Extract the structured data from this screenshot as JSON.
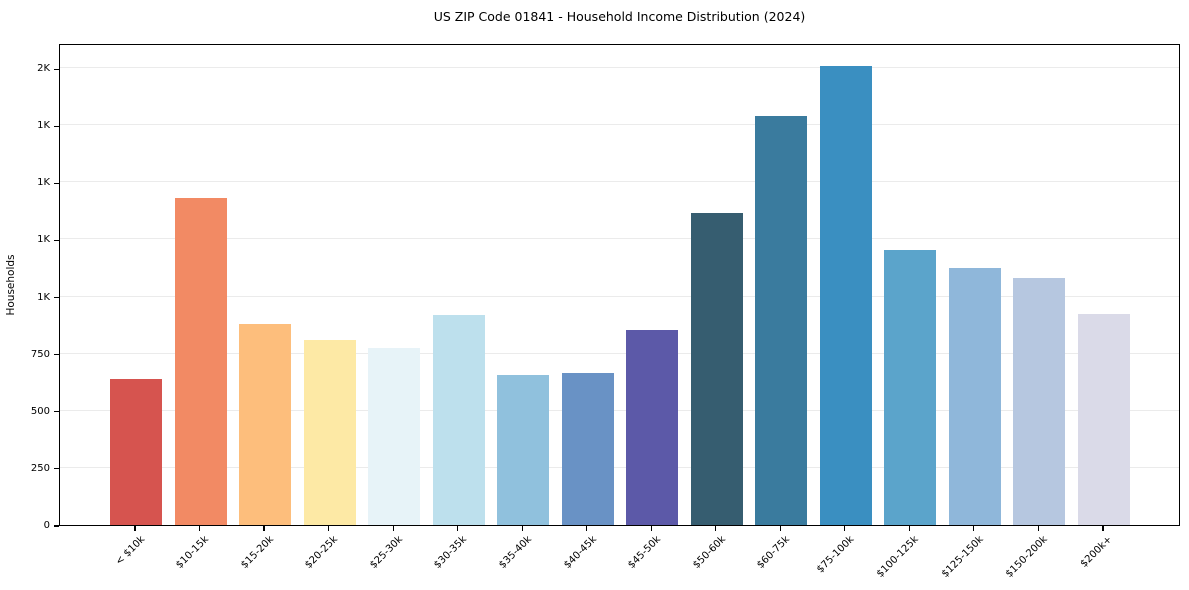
{
  "window": {
    "background": "#ffffff"
  },
  "chart_data": {
    "type": "bar",
    "title": "US ZIP Code 01841 - Household Income Distribution (2024)",
    "xlabel": "",
    "ylabel": "Households",
    "categories": [
      "< $10k",
      "$10-15k",
      "$15-20k",
      "$20-25k",
      "$25-30k",
      "$30-35k",
      "$35-40k",
      "$40-45k",
      "$45-50k",
      "$50-60k",
      "$60-75k",
      "$75-100k",
      "$100-125k",
      "$125-150k",
      "$150-200k",
      "$200k+"
    ],
    "values": [
      640,
      1430,
      880,
      810,
      775,
      920,
      655,
      665,
      855,
      1365,
      1790,
      2010,
      1205,
      1125,
      1080,
      925
    ],
    "bar_colors": [
      "#d6544f",
      "#f28a64",
      "#fdbe7c",
      "#fde9a5",
      "#e7f3f8",
      "#bde0ed",
      "#90c1dd",
      "#6992c5",
      "#5c59a8",
      "#365d70",
      "#3a7b9e",
      "#3a8fc1",
      "#5ba4cb",
      "#8fb7da",
      "#b6c7e0",
      "#dadae8"
    ],
    "ylim": [
      0,
      2110
    ],
    "yticks": [
      {
        "value": 0,
        "label": "0"
      },
      {
        "value": 250,
        "label": "250"
      },
      {
        "value": 500,
        "label": "500"
      },
      {
        "value": 750,
        "label": "750"
      },
      {
        "value": 1000,
        "label": "1K"
      },
      {
        "value": 1250,
        "label": "1K"
      },
      {
        "value": 1500,
        "label": "1K"
      },
      {
        "value": 1750,
        "label": "1K"
      },
      {
        "value": 2000,
        "label": "2K"
      }
    ],
    "grid": "horizontal",
    "grid_color": "#ebebeb",
    "legend_position": "none",
    "spine_color": "#000000",
    "bar_width_ratio": 0.8
  }
}
